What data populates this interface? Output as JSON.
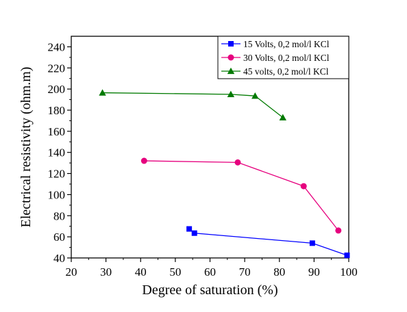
{
  "chart_data": {
    "type": "line",
    "xlabel": "Degree of saturation (%)",
    "ylabel": "Electrical resistivity (ohm.m)",
    "xlim": [
      20,
      100
    ],
    "ylim": [
      40,
      250
    ],
    "xticks": [
      20,
      30,
      40,
      50,
      60,
      70,
      80,
      90,
      100
    ],
    "yticks": [
      40,
      60,
      80,
      100,
      120,
      140,
      160,
      180,
      200,
      220,
      240
    ],
    "grid": false,
    "legend_position": "top-right",
    "series": [
      {
        "name": "15 Volts, 0,2 mol/l KCl",
        "color": "#0000ff",
        "marker": "square",
        "points": [
          [
            54,
            67.5
          ],
          [
            55.5,
            63.5
          ],
          [
            89.5,
            54
          ],
          [
            99.5,
            42.5
          ]
        ]
      },
      {
        "name": "30 Volts, 0,2 mol/l KCl",
        "color": "#e6007e",
        "marker": "circle",
        "points": [
          [
            41,
            132
          ],
          [
            68,
            130.5
          ],
          [
            87,
            108
          ],
          [
            97,
            66
          ]
        ]
      },
      {
        "name": "45 volts, 0,2 mol/l KCl",
        "color": "#007a00",
        "marker": "triangle",
        "points": [
          [
            29,
            196.5
          ],
          [
            66,
            195
          ],
          [
            73,
            193.5
          ],
          [
            81,
            173
          ]
        ]
      }
    ]
  }
}
